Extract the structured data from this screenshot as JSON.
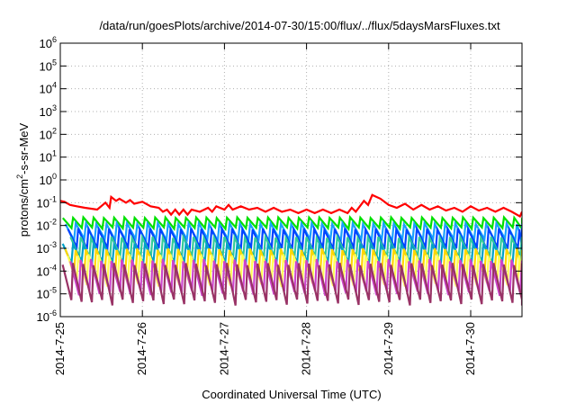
{
  "chart_data": {
    "type": "line",
    "title": "/data/run/goesPlots/archive/2014-07-30/15:00/flux/../flux/5daysMarsFluxes.txt",
    "xlabel": "Coordinated Universal Time (UTC)",
    "ylabel": {
      "prefix": "protons/cm",
      "sup": "2",
      "suffix": "-s-sr-MeV"
    },
    "x_start": "2014-7-25",
    "x_end": "2014-7-30 15:00",
    "x_ticks": [
      {
        "label": "2014-7-25",
        "day": 0
      },
      {
        "label": "2014-7-26",
        "day": 1
      },
      {
        "label": "2014-7-27",
        "day": 2
      },
      {
        "label": "2014-7-28",
        "day": 3
      },
      {
        "label": "2014-7-29",
        "day": 4
      },
      {
        "label": "2014-7-30",
        "day": 5
      }
    ],
    "y_scale": "log",
    "ylim": [
      1e-06,
      1000000.0
    ],
    "y_ticks": [
      {
        "base": "10",
        "exp": "6"
      },
      {
        "base": "10",
        "exp": "5"
      },
      {
        "base": "10",
        "exp": "4"
      },
      {
        "base": "10",
        "exp": "3"
      },
      {
        "base": "10",
        "exp": "2"
      },
      {
        "base": "10",
        "exp": "1"
      },
      {
        "base": "10",
        "exp": "0"
      },
      {
        "base": "10",
        "exp": "-1"
      },
      {
        "base": "10",
        "exp": "-2"
      },
      {
        "base": "10",
        "exp": "-3"
      },
      {
        "base": "10",
        "exp": "-4"
      },
      {
        "base": "10",
        "exp": "-5"
      },
      {
        "base": "10",
        "exp": "-6"
      }
    ],
    "grid": true,
    "legend": "none",
    "series": [
      {
        "color": "#ff0000",
        "x": [
          0.0,
          0.05,
          0.12,
          0.2,
          0.3,
          0.45,
          0.55,
          0.6,
          0.62,
          0.68,
          0.72,
          0.8,
          0.85,
          0.9,
          1.0,
          1.1,
          1.2,
          1.25,
          1.3,
          1.35,
          1.4,
          1.45,
          1.5,
          1.55,
          1.6,
          1.7,
          1.8,
          1.85,
          1.9,
          2.0,
          2.05,
          2.1,
          2.2,
          2.3,
          2.4,
          2.5,
          2.6,
          2.7,
          2.8,
          2.9,
          3.0,
          3.1,
          3.2,
          3.3,
          3.4,
          3.5,
          3.55,
          3.6,
          3.7,
          3.75,
          3.8,
          3.9,
          4.0,
          4.1,
          4.2,
          4.3,
          4.4,
          4.5,
          4.6,
          4.7,
          4.8,
          4.9,
          5.0,
          5.1,
          5.2,
          5.3,
          5.4,
          5.5,
          5.6,
          5.625
        ],
        "y": [
          0.12,
          0.11,
          0.08,
          0.07,
          0.06,
          0.05,
          0.1,
          0.06,
          0.18,
          0.12,
          0.15,
          0.1,
          0.13,
          0.09,
          0.11,
          0.07,
          0.06,
          0.04,
          0.05,
          0.03,
          0.05,
          0.03,
          0.05,
          0.03,
          0.05,
          0.04,
          0.06,
          0.04,
          0.07,
          0.05,
          0.08,
          0.05,
          0.07,
          0.05,
          0.06,
          0.04,
          0.06,
          0.04,
          0.05,
          0.035,
          0.05,
          0.035,
          0.05,
          0.035,
          0.05,
          0.035,
          0.06,
          0.04,
          0.12,
          0.08,
          0.22,
          0.15,
          0.08,
          0.06,
          0.09,
          0.05,
          0.08,
          0.05,
          0.07,
          0.045,
          0.06,
          0.04,
          0.07,
          0.045,
          0.06,
          0.04,
          0.06,
          0.04,
          0.025,
          0.04
        ]
      },
      {
        "color": "#00e000",
        "max": 0.022,
        "min": 0.007
      },
      {
        "color": "#1aa0ff",
        "max": 0.012,
        "min": 0.002
      },
      {
        "color": "#0044ff",
        "max": 0.007,
        "min": 0.0008
      },
      {
        "color": "#33cc99",
        "max": 0.003,
        "min": 0.00035
      },
      {
        "color": "#00a0c8",
        "max": 0.0015,
        "min": 0.0002
      },
      {
        "color": "#ffd700",
        "max": 0.0009,
        "min": 6e-05
      },
      {
        "color": "#ffff55",
        "max": 0.0005,
        "min": 2e-05
      },
      {
        "color": "#cc44cc",
        "max": 0.0003,
        "min": 8e-06
      },
      {
        "color": "#993366",
        "max": 0.0002,
        "min": 3e-06
      }
    ]
  }
}
